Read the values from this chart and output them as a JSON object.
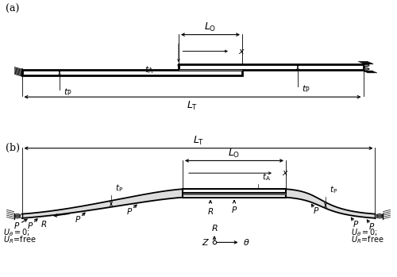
{
  "fig_width": 5.0,
  "fig_height": 3.49,
  "dpi": 100,
  "bg_color": "#ffffff"
}
